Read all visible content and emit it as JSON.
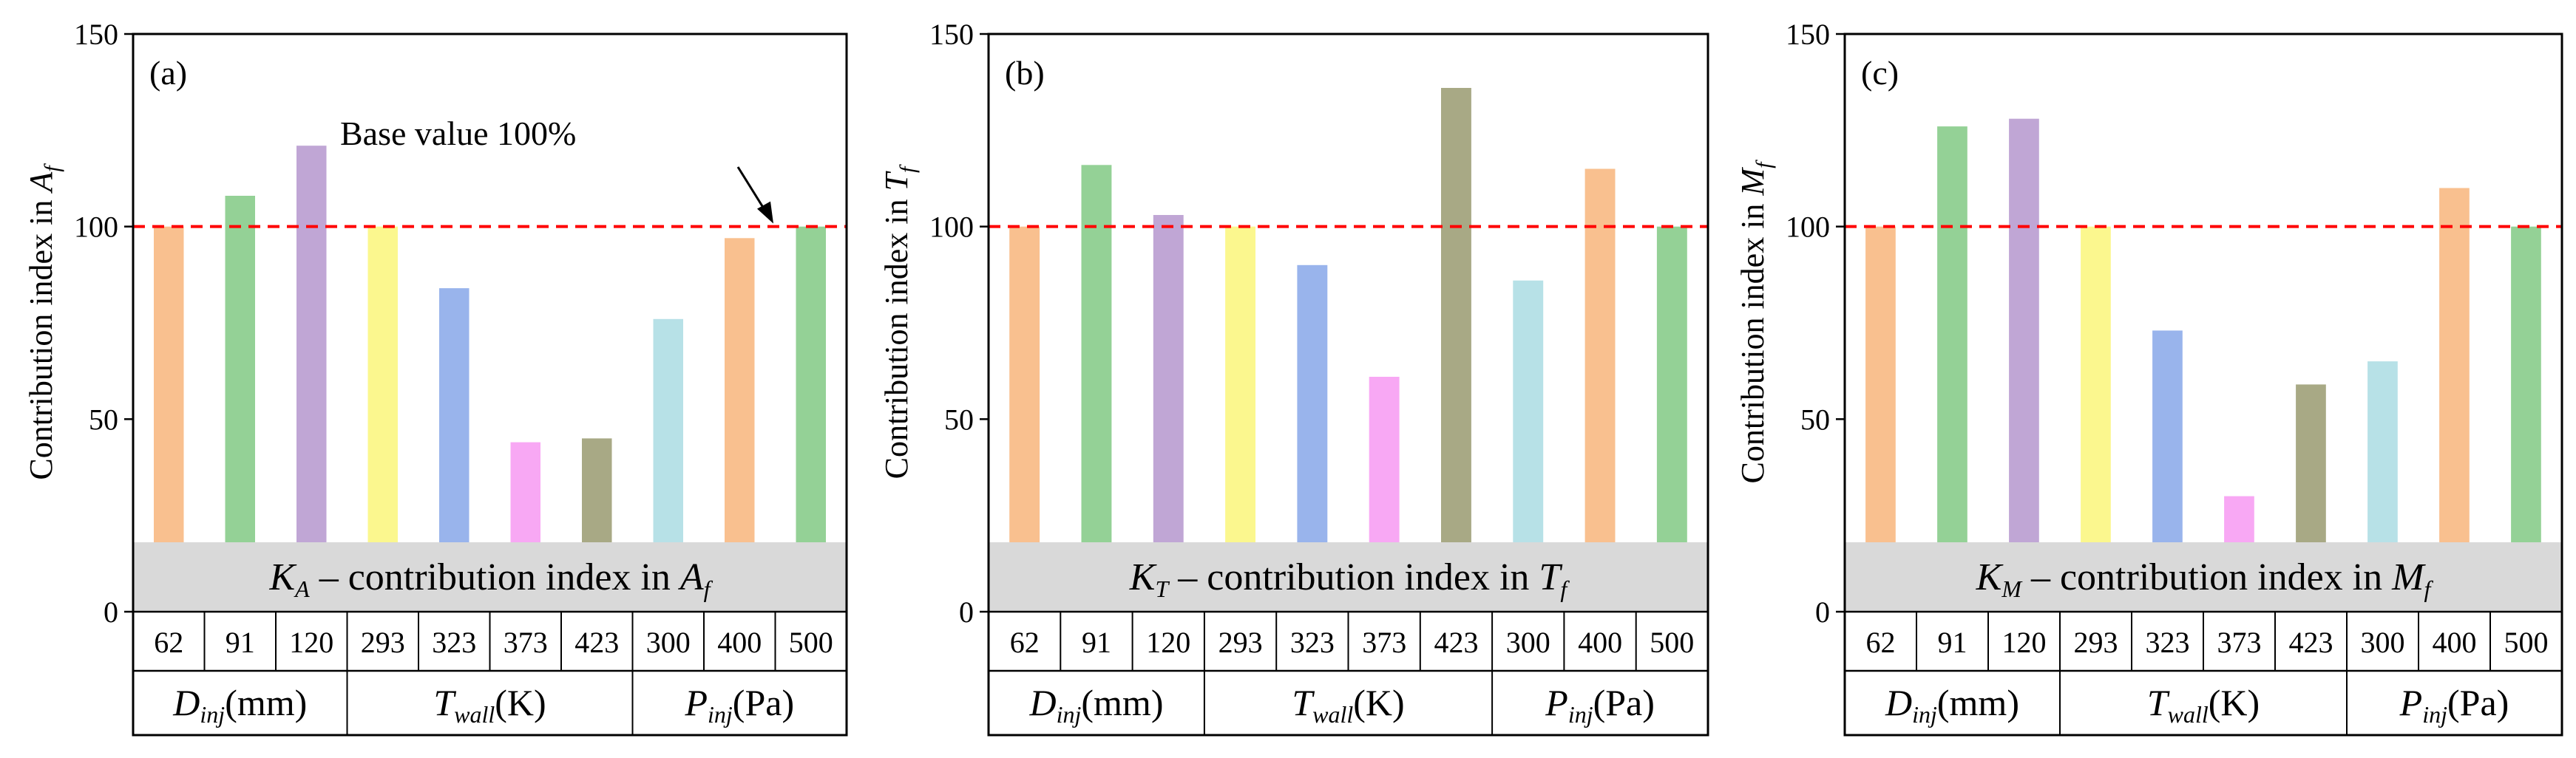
{
  "chart_data": [
    {
      "type": "bar",
      "panel_label": "(a)",
      "ylabel_main": "Contribution index in ",
      "ylabel_sym": "A",
      "ylabel_sub": "f",
      "band": {
        "sym": "K",
        "sub": "A",
        "text": " – contribution index in ",
        "sym2": "A",
        "sub2": "f"
      },
      "ylim": [
        0,
        150
      ],
      "yticks": [
        0,
        50,
        100,
        150
      ],
      "baseline": 100,
      "annotation": "Base value  100%",
      "groups": [
        {
          "sym": "D",
          "sub": "inj",
          "unit": "(mm)",
          "categories": [
            "62",
            "91",
            "120"
          ],
          "values": [
            100,
            108,
            121
          ]
        },
        {
          "sym": "T",
          "sub": "wall",
          "unit": "(K)",
          "categories": [
            "293",
            "323",
            "373",
            "423"
          ],
          "values": [
            100,
            84,
            44,
            45
          ]
        },
        {
          "sym": "P",
          "sub": "inj",
          "unit": "(Pa)",
          "categories": [
            "300",
            "400",
            "500"
          ],
          "values": [
            76,
            97,
            100
          ]
        }
      ]
    },
    {
      "type": "bar",
      "panel_label": "(b)",
      "ylabel_main": "Contribution index in ",
      "ylabel_sym": "T",
      "ylabel_sub": "f",
      "band": {
        "sym": "K",
        "sub": "T",
        "text": " – contribution index in ",
        "sym2": "T",
        "sub2": "f"
      },
      "ylim": [
        0,
        150
      ],
      "yticks": [
        0,
        50,
        100,
        150
      ],
      "baseline": 100,
      "groups": [
        {
          "sym": "D",
          "sub": "inj",
          "unit": "(mm)",
          "categories": [
            "62",
            "91",
            "120"
          ],
          "values": [
            100,
            116,
            103
          ]
        },
        {
          "sym": "T",
          "sub": "wall",
          "unit": "(K)",
          "categories": [
            "293",
            "323",
            "373",
            "423"
          ],
          "values": [
            100,
            90,
            61,
            136
          ]
        },
        {
          "sym": "P",
          "sub": "inj",
          "unit": "(Pa)",
          "categories": [
            "300",
            "400",
            "500"
          ],
          "values": [
            86,
            115,
            100
          ]
        }
      ]
    },
    {
      "type": "bar",
      "panel_label": "(c)",
      "ylabel_main": "Contribution index in ",
      "ylabel_sym": "M",
      "ylabel_sub": "f",
      "band": {
        "sym": "K",
        "sub": "M",
        "text": " – contribution index in ",
        "sym2": "M",
        "sub2": "f"
      },
      "ylim": [
        0,
        150
      ],
      "yticks": [
        0,
        50,
        100,
        150
      ],
      "baseline": 100,
      "groups": [
        {
          "sym": "D",
          "sub": "inj",
          "unit": "(mm)",
          "categories": [
            "62",
            "91",
            "120"
          ],
          "values": [
            100,
            126,
            128
          ]
        },
        {
          "sym": "T",
          "sub": "wall",
          "unit": "(K)",
          "categories": [
            "293",
            "323",
            "373",
            "423"
          ],
          "values": [
            100,
            73,
            30,
            59
          ]
        },
        {
          "sym": "P",
          "sub": "inj",
          "unit": "(Pa)",
          "categories": [
            "300",
            "400",
            "500"
          ],
          "values": [
            65,
            110,
            100
          ]
        }
      ]
    }
  ],
  "colors": {
    "bars": [
      "#f9c08f",
      "#94d196",
      "#c0a6d5",
      "#fbf78e",
      "#99b4ec",
      "#f8a8f4",
      "#a8a985",
      "#b7e1e7",
      "#f9c08f",
      "#94d196"
    ],
    "baseline": "#ff0000",
    "band": "#d9d9d9"
  }
}
